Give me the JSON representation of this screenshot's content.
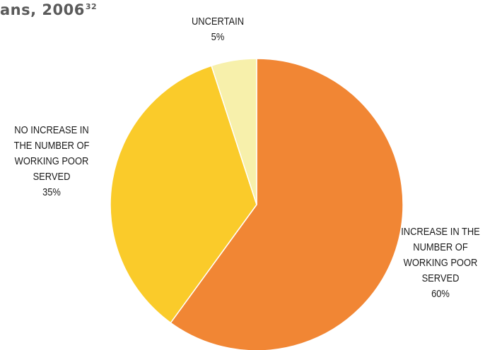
{
  "title_fragment": {
    "text": "ans, 2006",
    "superscript": "32"
  },
  "colors": {
    "increase": "#F18634",
    "no_increase": "#FACB2A",
    "uncertain": "#F7F0AB",
    "separator": "#ffffff",
    "label": "#1a1a1a"
  },
  "chart_data": {
    "type": "pie",
    "title": "",
    "start_angle_deg": 0,
    "direction": "clockwise",
    "slices": [
      {
        "label_lines": [
          "INCREASE IN THE",
          "NUMBER OF",
          "WORKING POOR",
          "SERVED"
        ],
        "value": 60,
        "value_label": "60%",
        "color_key": "increase"
      },
      {
        "label_lines": [
          "NO INCREASE IN",
          "THE NUMBER OF",
          "WORKING POOR",
          "SERVED"
        ],
        "value": 35,
        "value_label": "35%",
        "color_key": "no_increase"
      },
      {
        "label_lines": [
          "UNCERTAIN"
        ],
        "value": 5,
        "value_label": "5%",
        "color_key": "uncertain"
      }
    ]
  }
}
